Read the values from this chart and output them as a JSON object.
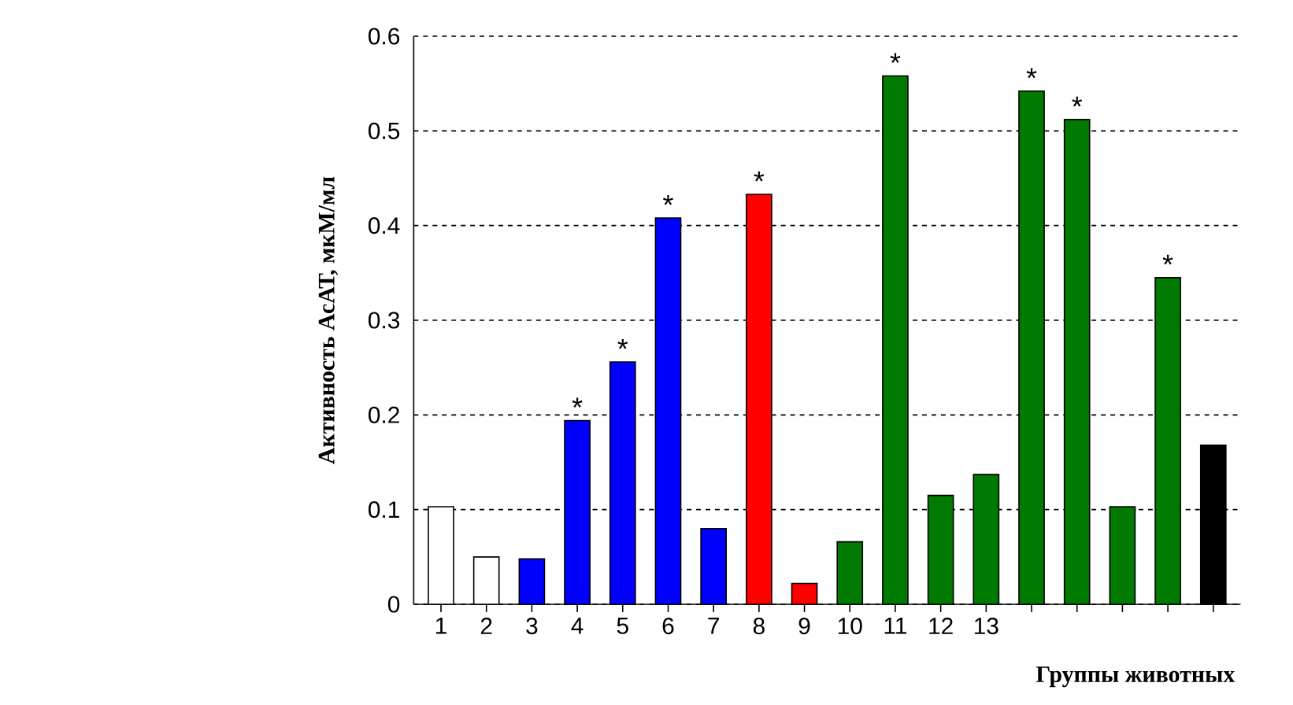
{
  "chart_data": {
    "type": "bar",
    "ylabel": "Активность АсАТ, мкМ/мл",
    "xlabel": "Группы животных",
    "categories": [
      "1",
      "2",
      "3",
      "4",
      "5",
      "6",
      "7",
      "8",
      "9",
      "10",
      "11",
      "12",
      "13",
      null,
      null,
      null,
      null,
      null
    ],
    "values": [
      0.103,
      0.05,
      0.048,
      0.194,
      0.256,
      0.408,
      0.08,
      0.433,
      0.022,
      0.066,
      0.558,
      0.115,
      0.137,
      0.542,
      0.512,
      0.103,
      0.345,
      0.168
    ],
    "colors": [
      "#ffffff",
      "#ffffff",
      "#0000ff",
      "#0000ff",
      "#0000ff",
      "#0000ff",
      "#0000ff",
      "#ff0000",
      "#ff0000",
      "#007a00",
      "#007a00",
      "#007a00",
      "#007a00",
      "#007a00",
      "#007a00",
      "#007a00",
      "#007a00",
      "#000000"
    ],
    "value_labels": [
      null,
      null,
      null,
      "*",
      "*",
      "*",
      null,
      "*",
      null,
      null,
      "*",
      null,
      null,
      "*",
      "*",
      null,
      "*",
      null
    ],
    "ylim": [
      0,
      0.6
    ],
    "yticks": [
      0,
      0.1,
      0.2,
      0.3,
      0.4,
      0.5,
      0.6
    ],
    "grid": "y"
  }
}
